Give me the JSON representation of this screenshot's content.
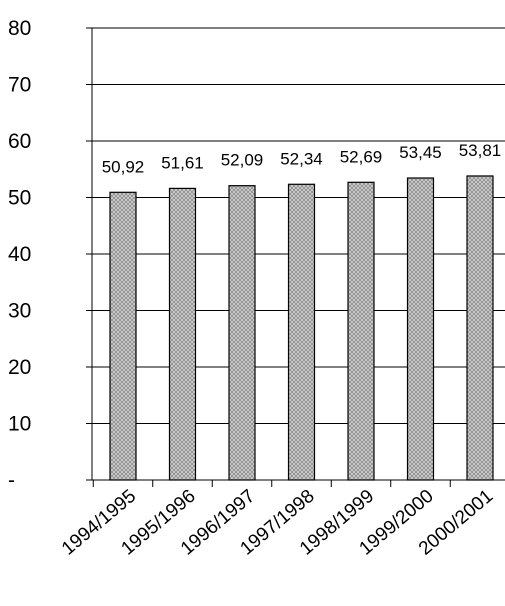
{
  "chart_data": {
    "type": "bar",
    "categories": [
      "1994/1995",
      "1995/1996",
      "1996/1997",
      "1997/1998",
      "1998/1999",
      "1999/2000",
      "2000/2001"
    ],
    "values": [
      50.92,
      51.61,
      52.09,
      52.34,
      52.69,
      53.45,
      53.81
    ],
    "data_labels": [
      "50,92",
      "51,61",
      "52,09",
      "52,34",
      "52,69",
      "53,45",
      "53,81"
    ],
    "yticks": [
      0,
      10,
      20,
      30,
      40,
      50,
      60,
      70,
      80
    ],
    "ytick_labels": [
      "-",
      "10",
      "20",
      "30",
      "40",
      "50",
      "60",
      "70",
      "80"
    ],
    "ylim": [
      0,
      80
    ],
    "title": "",
    "xlabel": "",
    "ylabel": "",
    "grid": true,
    "bar_pattern": "crosshatch",
    "colors": {
      "bar_fill": "#d4d4d4",
      "bar_hatch": "#8a8a8a",
      "bar_edge": "#000000",
      "grid": "#000000",
      "axis": "#000000"
    }
  }
}
